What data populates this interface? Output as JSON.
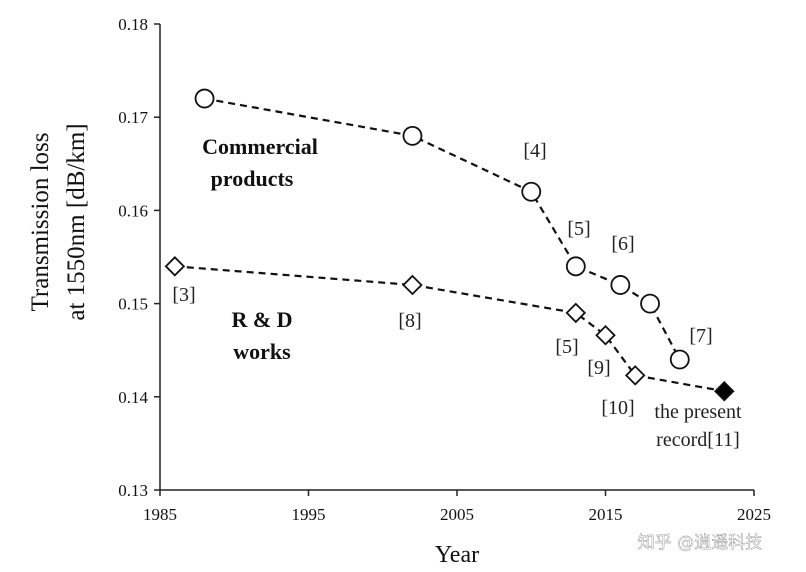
{
  "chart_data": {
    "type": "line",
    "xlabel": "Year",
    "ylabel_line1": "Transmission loss",
    "ylabel_line2": "at 1550nm  [dB/km]",
    "xlim": [
      1985,
      2025
    ],
    "ylim": [
      0.13,
      0.18
    ],
    "xticks": [
      "1985",
      "1995",
      "2005",
      "2015",
      "2025"
    ],
    "yticks": [
      "0.13",
      "0.14",
      "0.15",
      "0.16",
      "0.17",
      "0.18"
    ],
    "grid": false,
    "series": [
      {
        "name": "Commercial products",
        "marker": "circle",
        "line": "dashed",
        "x": [
          1988,
          2002,
          2010,
          2013,
          2016,
          2018,
          2020
        ],
        "y": [
          0.172,
          0.168,
          0.162,
          0.154,
          0.152,
          0.15,
          0.144
        ]
      },
      {
        "name": "R & D works",
        "marker": "diamond",
        "line": "dashed",
        "x": [
          1986,
          2002,
          2013,
          2015,
          2017,
          2023
        ],
        "y": [
          0.154,
          0.152,
          0.149,
          0.1466,
          0.1423,
          0.1406
        ]
      }
    ],
    "filled_point": {
      "series": "R & D works",
      "x": 2023,
      "y": 0.1406
    },
    "group_labels": [
      {
        "lines": [
          "Commercial",
          "products"
        ]
      },
      {
        "lines": [
          "R & D",
          "works"
        ]
      }
    ],
    "annotations": [
      {
        "text": "[4]"
      },
      {
        "text": "[5]"
      },
      {
        "text": "[6]"
      },
      {
        "text": "[7]"
      },
      {
        "text": "[3]"
      },
      {
        "text": "[8]"
      },
      {
        "text": "[5]"
      },
      {
        "text": "[9]"
      },
      {
        "text": "[10]"
      },
      {
        "text": "the present"
      },
      {
        "text": "record[11]"
      }
    ]
  },
  "watermark": "知乎 @逍遥科技"
}
